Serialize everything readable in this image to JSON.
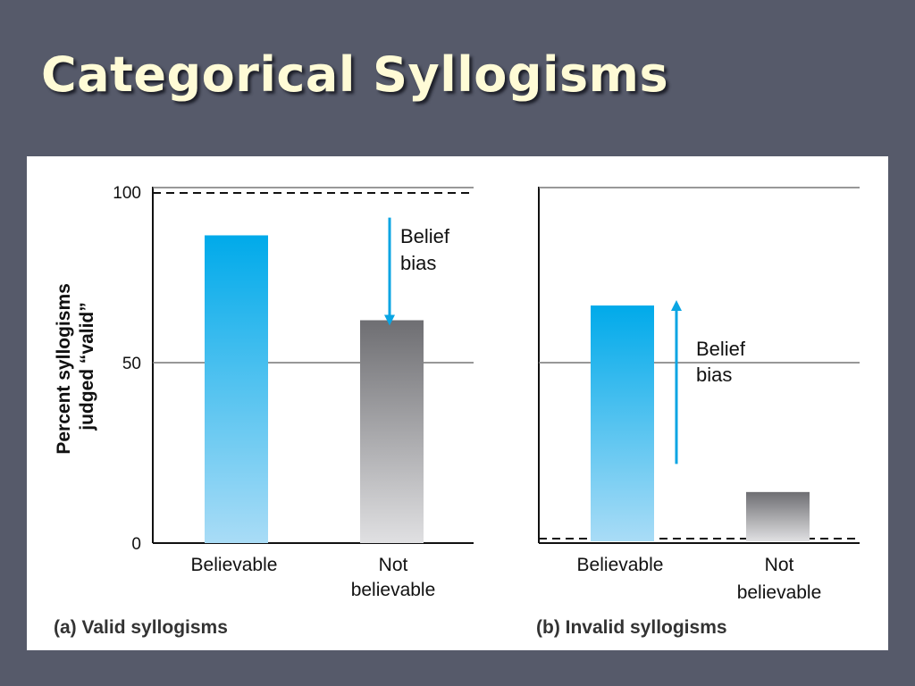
{
  "slide": {
    "title": "Categorical Syllogisms"
  },
  "colors": {
    "believable_top": "#00aaea",
    "believable_bottom": "#a9dcf6",
    "not_believable_top": "#6e6e72",
    "not_believable_bottom": "#e0e0e2",
    "arrow": "#0aa5e3"
  },
  "chart_data": [
    {
      "type": "bar",
      "caption": "(a) Valid syllogisms",
      "ylabel": [
        "Percent syllogisms",
        "judged “valid”"
      ],
      "categories": [
        [
          "Believable"
        ],
        [
          "Not",
          "believable"
        ]
      ],
      "values": [
        87,
        63
      ],
      "ylim": [
        0,
        100
      ],
      "yticks": [
        "0",
        "50",
        "100"
      ],
      "gridlines": [
        50,
        100
      ],
      "reference_line": 100,
      "annotation": {
        "lines": [
          "Belief",
          "bias"
        ],
        "arrow_direction": "down",
        "from_value": 92,
        "to_value": 63
      }
    },
    {
      "type": "bar",
      "caption": "(b) Invalid syllogisms",
      "categories": [
        [
          "Believable"
        ],
        [
          "Not",
          "believable"
        ]
      ],
      "values": [
        67,
        14
      ],
      "ylim": [
        0,
        100
      ],
      "gridlines": [
        50,
        100
      ],
      "reference_line": 0,
      "annotation": {
        "lines": [
          "Belief",
          "bias"
        ],
        "arrow_direction": "up",
        "from_value": 22,
        "to_value": 67
      }
    }
  ]
}
